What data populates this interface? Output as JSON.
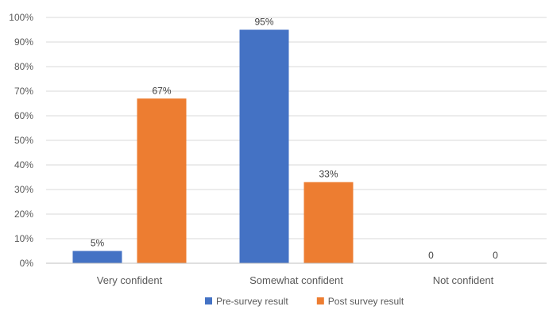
{
  "chart_data": {
    "type": "bar",
    "categories": [
      "Very confident",
      "Somewhat confident",
      "Not confident"
    ],
    "series": [
      {
        "name": "Pre-survey result",
        "color": "#4472C4",
        "values": [
          5,
          95,
          0
        ],
        "labels": [
          "5%",
          "95%",
          "0"
        ]
      },
      {
        "name": "Post survey result",
        "color": "#ED7D31",
        "values": [
          67,
          33,
          0
        ],
        "labels": [
          "67%",
          "33%",
          "0"
        ]
      }
    ],
    "ylim": [
      0,
      100
    ],
    "yticks": [
      0,
      10,
      20,
      30,
      40,
      50,
      60,
      70,
      80,
      90,
      100
    ],
    "ytick_labels": [
      "0%",
      "10%",
      "20%",
      "30%",
      "40%",
      "50%",
      "60%",
      "70%",
      "80%",
      "90%",
      "100%"
    ],
    "grid": true,
    "legend_position": "bottom",
    "title": "",
    "xlabel": "",
    "ylabel": ""
  }
}
